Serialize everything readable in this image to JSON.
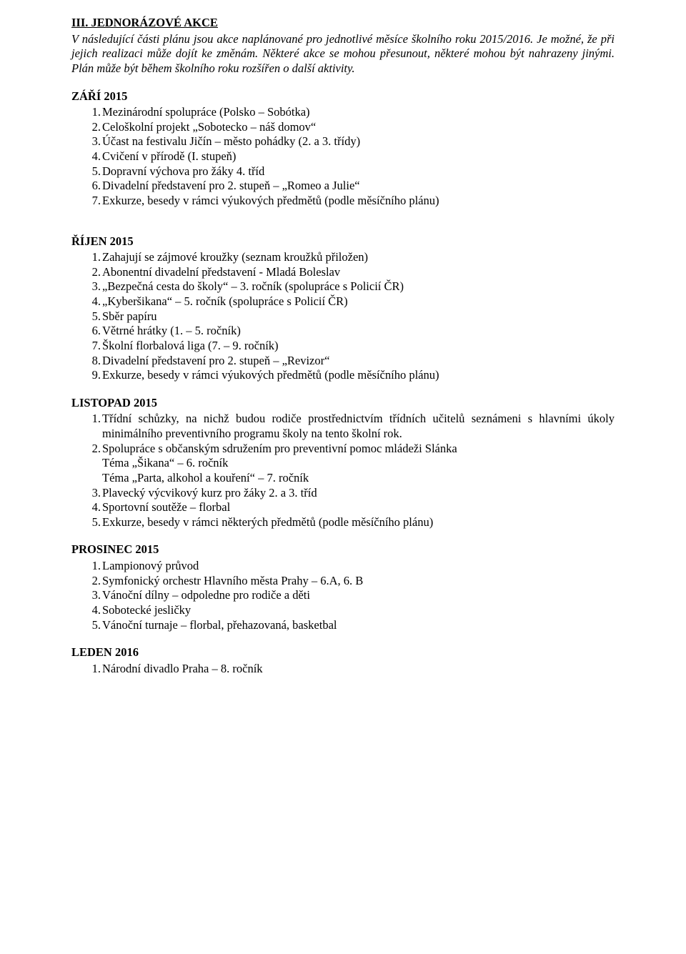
{
  "colors": {
    "text": "#000000",
    "background": "#ffffff"
  },
  "typography": {
    "font_family": "Times New Roman",
    "body_fontsize_pt": 12,
    "heading_weight": "bold"
  },
  "main_heading": "III. JEDNORÁZOVÉ AKCE",
  "intro": "V následující části plánu jsou akce naplánované pro jednotlivé měsíce školního roku 2015/2016. Je možné, že při jejich realizaci může dojít ke změnám. Některé akce se mohou přesunout, některé mohou být nahrazeny jinými. Plán může být během školního roku rozšířen o další aktivity.",
  "sep": {
    "heading": "ZÁŘÍ 2015",
    "items": [
      "Mezinárodní spolupráce (Polsko – Sobótka)",
      "Celoškolní projekt „Sobotecko – náš domov“",
      "Účast na festivalu Jičín – město pohádky (2. a 3. třídy)",
      "Cvičení v přírodě (I. stupeň)",
      "Dopravní výchova pro žáky 4. tříd",
      "Divadelní představení pro 2. stupeň – „Romeo a Julie“",
      "Exkurze, besedy v rámci výukových předmětů (podle měsíčního plánu)"
    ]
  },
  "oct": {
    "heading": "ŘÍJEN 2015",
    "items": [
      "Zahajují se zájmové kroužky (seznam kroužků přiložen)",
      "Abonentní divadelní představení - Mladá Boleslav",
      " „Bezpečná cesta do školy“ – 3. ročník (spolupráce s Policií ČR)",
      "„Kyberšikana“ – 5. ročník (spolupráce s Policií ČR)",
      "Sběr papíru",
      "Větrné hrátky (1. – 5. ročník)",
      "Školní florbalová liga (7. – 9. ročník)",
      "Divadelní představení pro 2. stupeň – „Revizor“",
      "Exkurze, besedy v rámci výukových předmětů (podle měsíčního plánu)"
    ]
  },
  "nov": {
    "heading": "LISTOPAD 2015",
    "items": [
      "Třídní schůzky, na nichž budou rodiče prostřednictvím třídních učitelů seznámeni s hlavními úkoly minimálního preventivního programu školy na tento školní rok.",
      "Spolupráce s občanským sdružením pro preventivní pomoc mládeži Slánka",
      "Plavecký výcvikový kurz pro žáky 2. a 3. tříd",
      "Sportovní soutěže – florbal",
      "Exkurze, besedy v rámci některých předmětů (podle měsíčního plánu)"
    ],
    "sub2a": "Téma „Šikana“ – 6. ročník",
    "sub2b": "Téma „Parta, alkohol a kouření“ – 7. ročník"
  },
  "dec": {
    "heading": "PROSINEC 2015",
    "items": [
      "Lampionový průvod",
      "Symfonický orchestr Hlavního města Prahy – 6.A, 6. B",
      "Vánoční dílny – odpoledne pro rodiče a děti",
      "Sobotecké jesličky",
      "Vánoční turnaje – florbal, přehazovaná, basketbal"
    ]
  },
  "jan": {
    "heading": "LEDEN  2016",
    "items": [
      "Národní divadlo Praha – 8. ročník"
    ]
  }
}
